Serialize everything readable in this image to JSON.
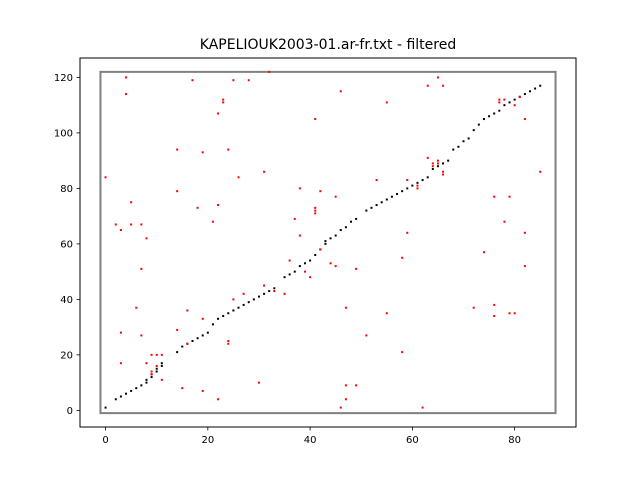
{
  "chart_data": {
    "type": "scatter",
    "title": "KAPELIOUK2003-01.ar-fr.txt - filtered",
    "xlabel": "",
    "ylabel": "",
    "xlim": [
      -5,
      92
    ],
    "ylim": [
      -6,
      127
    ],
    "grid": false,
    "x_ticks": [
      0,
      20,
      40,
      60,
      80
    ],
    "y_ticks": [
      0,
      20,
      40,
      60,
      80,
      100,
      120
    ],
    "frame_box": {
      "x": [
        -1,
        88
      ],
      "y": [
        -1,
        122
      ],
      "color": "#808080"
    },
    "series": [
      {
        "color": "#000000",
        "points": [
          [
            0,
            1
          ],
          [
            2,
            4
          ],
          [
            3,
            5
          ],
          [
            4,
            6
          ],
          [
            5,
            7
          ],
          [
            6,
            8
          ],
          [
            7,
            9
          ],
          [
            8,
            10
          ],
          [
            8,
            11
          ],
          [
            9,
            12
          ],
          [
            9,
            13
          ],
          [
            10,
            14
          ],
          [
            10,
            15
          ],
          [
            11,
            16
          ],
          [
            11,
            17
          ],
          [
            14,
            21
          ],
          [
            15,
            23
          ],
          [
            16,
            24
          ],
          [
            17,
            25
          ],
          [
            18,
            26
          ],
          [
            19,
            27
          ],
          [
            20,
            28
          ],
          [
            21,
            31
          ],
          [
            22,
            33
          ],
          [
            23,
            34
          ],
          [
            24,
            35
          ],
          [
            25,
            36
          ],
          [
            26,
            37
          ],
          [
            27,
            38
          ],
          [
            28,
            39
          ],
          [
            29,
            40
          ],
          [
            30,
            41
          ],
          [
            31,
            42
          ],
          [
            32,
            43
          ],
          [
            33,
            44
          ],
          [
            35,
            48
          ],
          [
            36,
            49
          ],
          [
            37,
            50
          ],
          [
            38,
            52
          ],
          [
            39,
            53
          ],
          [
            40,
            54
          ],
          [
            41,
            56
          ],
          [
            42,
            58
          ],
          [
            43,
            60
          ],
          [
            43,
            61
          ],
          [
            44,
            62
          ],
          [
            45,
            63
          ],
          [
            46,
            65
          ],
          [
            47,
            66
          ],
          [
            48,
            68
          ],
          [
            49,
            69
          ],
          [
            51,
            72
          ],
          [
            52,
            73
          ],
          [
            53,
            74
          ],
          [
            54,
            75
          ],
          [
            55,
            76
          ],
          [
            56,
            77
          ],
          [
            57,
            78
          ],
          [
            58,
            79
          ],
          [
            59,
            80
          ],
          [
            60,
            81
          ],
          [
            61,
            82
          ],
          [
            62,
            83
          ],
          [
            63,
            84
          ],
          [
            64,
            87
          ],
          [
            65,
            88
          ],
          [
            66,
            89
          ],
          [
            67,
            90
          ],
          [
            68,
            94
          ],
          [
            69,
            95
          ],
          [
            70,
            97
          ],
          [
            71,
            98
          ],
          [
            72,
            101
          ],
          [
            73,
            103
          ],
          [
            74,
            105
          ],
          [
            75,
            106
          ],
          [
            76,
            107
          ],
          [
            77,
            108
          ],
          [
            78,
            110
          ],
          [
            79,
            111
          ],
          [
            80,
            112
          ],
          [
            81,
            113
          ],
          [
            82,
            114
          ],
          [
            83,
            115
          ],
          [
            84,
            116
          ],
          [
            85,
            117
          ]
        ]
      },
      {
        "color": "#ff0000",
        "points": [
          [
            0,
            84
          ],
          [
            2,
            67
          ],
          [
            3,
            65
          ],
          [
            3,
            28
          ],
          [
            3,
            17
          ],
          [
            4,
            120
          ],
          [
            4,
            114
          ],
          [
            5,
            75
          ],
          [
            5,
            67
          ],
          [
            6,
            37
          ],
          [
            7,
            67
          ],
          [
            7,
            51
          ],
          [
            7,
            27
          ],
          [
            8,
            62
          ],
          [
            8,
            17
          ],
          [
            9,
            20
          ],
          [
            9,
            14
          ],
          [
            9,
            13
          ],
          [
            10,
            20
          ],
          [
            10,
            16
          ],
          [
            11,
            20
          ],
          [
            11,
            11
          ],
          [
            14,
            94
          ],
          [
            14,
            79
          ],
          [
            14,
            29
          ],
          [
            15,
            8
          ],
          [
            16,
            36
          ],
          [
            16,
            24
          ],
          [
            17,
            119
          ],
          [
            18,
            73
          ],
          [
            19,
            93
          ],
          [
            19,
            7
          ],
          [
            19,
            33
          ],
          [
            21,
            68
          ],
          [
            22,
            107
          ],
          [
            22,
            74
          ],
          [
            22,
            4
          ],
          [
            23,
            112
          ],
          [
            23,
            111
          ],
          [
            24,
            94
          ],
          [
            24,
            25
          ],
          [
            24,
            24
          ],
          [
            25,
            119
          ],
          [
            25,
            40
          ],
          [
            26,
            84
          ],
          [
            27,
            42
          ],
          [
            28,
            119
          ],
          [
            30,
            10
          ],
          [
            31,
            86
          ],
          [
            31,
            45
          ],
          [
            32,
            122
          ],
          [
            33,
            43
          ],
          [
            35,
            42
          ],
          [
            36,
            54
          ],
          [
            37,
            69
          ],
          [
            38,
            80
          ],
          [
            38,
            63
          ],
          [
            39,
            50
          ],
          [
            40,
            48
          ],
          [
            41,
            105
          ],
          [
            41,
            73
          ],
          [
            41,
            72
          ],
          [
            41,
            71
          ],
          [
            42,
            79
          ],
          [
            42,
            58
          ],
          [
            44,
            53
          ],
          [
            45,
            77
          ],
          [
            45,
            52
          ],
          [
            46,
            115
          ],
          [
            46,
            1
          ],
          [
            47,
            37
          ],
          [
            47,
            9
          ],
          [
            47,
            4
          ],
          [
            49,
            51
          ],
          [
            49,
            9
          ],
          [
            51,
            27
          ],
          [
            53,
            83
          ],
          [
            55,
            111
          ],
          [
            55,
            35
          ],
          [
            58,
            55
          ],
          [
            58,
            21
          ],
          [
            59,
            83
          ],
          [
            59,
            64
          ],
          [
            61,
            80
          ],
          [
            61,
            81
          ],
          [
            62,
            1
          ],
          [
            63,
            117
          ],
          [
            63,
            91
          ],
          [
            64,
            89
          ],
          [
            64,
            88
          ],
          [
            65,
            120
          ],
          [
            65,
            90
          ],
          [
            65,
            89
          ],
          [
            66,
            117
          ],
          [
            66,
            86
          ],
          [
            66,
            85
          ],
          [
            72,
            37
          ],
          [
            74,
            57
          ],
          [
            76,
            77
          ],
          [
            76,
            38
          ],
          [
            76,
            34
          ],
          [
            77,
            112
          ],
          [
            77,
            111
          ],
          [
            78,
            68
          ],
          [
            78,
            112
          ],
          [
            79,
            77
          ],
          [
            79,
            35
          ],
          [
            80,
            35
          ],
          [
            80,
            110
          ],
          [
            81,
            113
          ],
          [
            82,
            105
          ],
          [
            82,
            64
          ],
          [
            82,
            52
          ],
          [
            85,
            86
          ]
        ]
      }
    ]
  }
}
